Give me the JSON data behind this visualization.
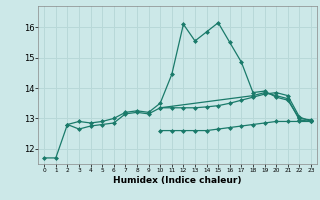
{
  "title": "",
  "xlabel": "Humidex (Indice chaleur)",
  "ylabel": "",
  "bg_color": "#cce8e8",
  "grid_color": "#b8d8d8",
  "line_color": "#1a7a6a",
  "xlim": [
    -0.5,
    23.5
  ],
  "ylim": [
    11.5,
    16.7
  ],
  "yticks": [
    12,
    13,
    14,
    15,
    16
  ],
  "xticks": [
    0,
    1,
    2,
    3,
    4,
    5,
    6,
    7,
    8,
    9,
    10,
    11,
    12,
    13,
    14,
    15,
    16,
    17,
    18,
    19,
    20,
    21,
    22,
    23
  ],
  "series": [
    [
      11.7,
      11.7,
      12.8,
      12.9,
      12.85,
      12.9,
      13.0,
      13.2,
      13.25,
      13.2,
      13.5,
      14.45,
      16.1,
      15.55,
      15.85,
      16.15,
      15.5,
      14.85,
      13.85,
      13.9,
      13.7,
      13.6,
      13.0,
      12.95
    ],
    [
      null,
      null,
      12.8,
      12.65,
      12.75,
      12.8,
      12.85,
      13.15,
      13.2,
      13.15,
      13.35,
      null,
      null,
      null,
      null,
      null,
      null,
      null,
      13.75,
      13.85,
      13.75,
      13.65,
      12.95,
      12.9
    ],
    [
      null,
      null,
      null,
      null,
      null,
      null,
      null,
      null,
      null,
      null,
      12.6,
      12.6,
      12.6,
      12.6,
      12.6,
      12.65,
      12.7,
      12.75,
      12.8,
      12.85,
      12.9,
      12.9,
      12.9,
      12.9
    ],
    [
      null,
      null,
      null,
      null,
      null,
      null,
      null,
      null,
      null,
      null,
      13.35,
      13.35,
      13.35,
      13.35,
      13.38,
      13.42,
      13.5,
      13.6,
      13.7,
      13.8,
      13.85,
      13.75,
      13.05,
      12.9
    ]
  ],
  "marker": "D",
  "markersize": 2.0,
  "linewidth": 0.9
}
